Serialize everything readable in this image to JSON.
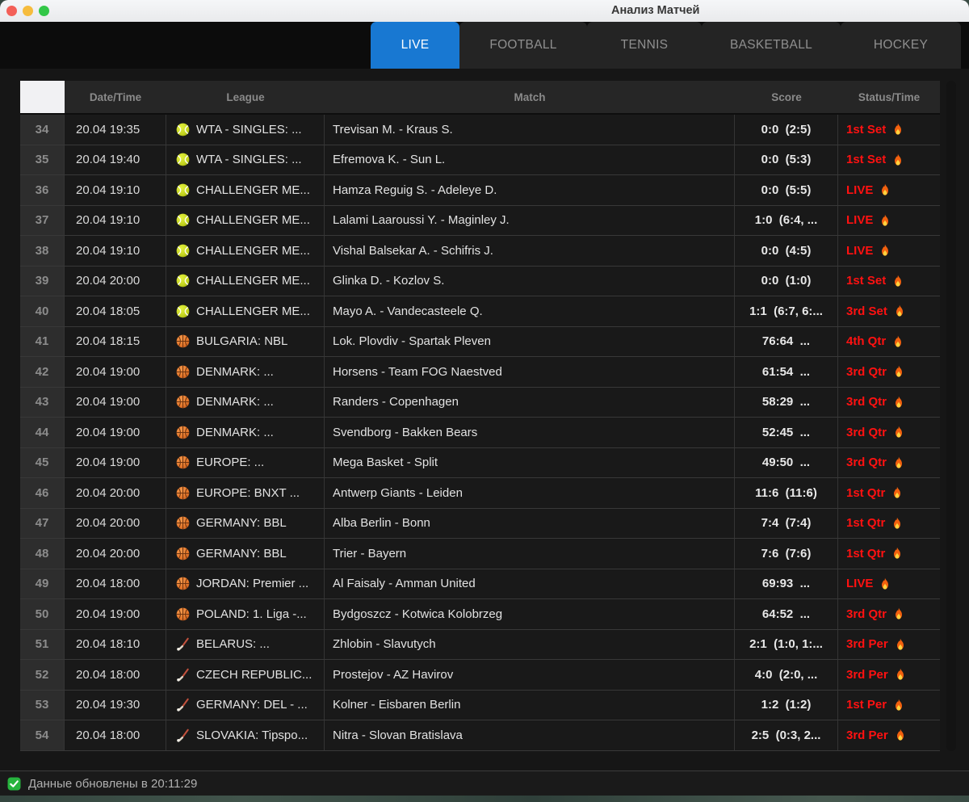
{
  "window": {
    "title": "Анализ Матчей"
  },
  "tabs": [
    {
      "label": "LIVE",
      "active": true
    },
    {
      "label": "FOOTBALL",
      "active": false
    },
    {
      "label": "TENNIS",
      "active": false
    },
    {
      "label": "BASKETBALL",
      "active": false
    },
    {
      "label": "HOCKEY",
      "active": false
    }
  ],
  "colors": {
    "active_tab_blue": "#1878d2",
    "status_red": "#ff1111",
    "check_green": "#27b43e"
  },
  "table": {
    "headers": {
      "date": "Date/Time",
      "league": "League",
      "match": "Match",
      "score": "Score",
      "status": "Status/Time"
    },
    "rows": [
      {
        "num": "34",
        "date": "20.04 19:35",
        "sport": "tennis",
        "league": "WTA - SINGLES: ...",
        "match": "Trevisan M. - Kraus S.",
        "score": "0:0  (2:5)",
        "status": "1st Set"
      },
      {
        "num": "35",
        "date": "20.04 19:40",
        "sport": "tennis",
        "league": "WTA - SINGLES: ...",
        "match": "Efremova K. - Sun L.",
        "score": "0:0  (5:3)",
        "status": "1st Set"
      },
      {
        "num": "36",
        "date": "20.04 19:10",
        "sport": "tennis",
        "league": "CHALLENGER ME...",
        "match": "Hamza Reguig S. - Adeleye D.",
        "score": "0:0  (5:5)",
        "status": "LIVE"
      },
      {
        "num": "37",
        "date": "20.04 19:10",
        "sport": "tennis",
        "league": "CHALLENGER ME...",
        "match": "Lalami Laaroussi Y. - Maginley J.",
        "score": "1:0  (6:4, ...",
        "status": "LIVE"
      },
      {
        "num": "38",
        "date": "20.04 19:10",
        "sport": "tennis",
        "league": "CHALLENGER ME...",
        "match": "Vishal Balsekar A. - Schifris J.",
        "score": "0:0  (4:5)",
        "status": "LIVE"
      },
      {
        "num": "39",
        "date": "20.04 20:00",
        "sport": "tennis",
        "league": "CHALLENGER ME...",
        "match": "Glinka D. - Kozlov S.",
        "score": "0:0  (1:0)",
        "status": "1st Set"
      },
      {
        "num": "40",
        "date": "20.04 18:05",
        "sport": "tennis",
        "league": "CHALLENGER ME...",
        "match": "Mayo A. - Vandecasteele Q.",
        "score": "1:1  (6:7, 6:...",
        "status": "3rd Set"
      },
      {
        "num": "41",
        "date": "20.04 18:15",
        "sport": "basketball",
        "league": "BULGARIA: NBL",
        "match": "Lok. Plovdiv - Spartak Pleven",
        "score": "76:64  ...",
        "status": "4th Qtr"
      },
      {
        "num": "42",
        "date": "20.04 19:00",
        "sport": "basketball",
        "league": "DENMARK: ...",
        "match": "Horsens - Team FOG Naestved",
        "score": "61:54  ...",
        "status": "3rd Qtr"
      },
      {
        "num": "43",
        "date": "20.04 19:00",
        "sport": "basketball",
        "league": "DENMARK: ...",
        "match": "Randers - Copenhagen",
        "score": "58:29  ...",
        "status": "3rd Qtr"
      },
      {
        "num": "44",
        "date": "20.04 19:00",
        "sport": "basketball",
        "league": "DENMARK: ...",
        "match": "Svendborg - Bakken Bears",
        "score": "52:45  ...",
        "status": "3rd Qtr"
      },
      {
        "num": "45",
        "date": "20.04 19:00",
        "sport": "basketball",
        "league": "EUROPE: ...",
        "match": "Mega Basket - Split",
        "score": "49:50  ...",
        "status": "3rd Qtr"
      },
      {
        "num": "46",
        "date": "20.04 20:00",
        "sport": "basketball",
        "league": "EUROPE: BNXT ...",
        "match": "Antwerp Giants - Leiden",
        "score": "11:6  (11:6)",
        "status": "1st Qtr"
      },
      {
        "num": "47",
        "date": "20.04 20:00",
        "sport": "basketball",
        "league": "GERMANY: BBL",
        "match": "Alba Berlin - Bonn",
        "score": "7:4  (7:4)",
        "status": "1st Qtr"
      },
      {
        "num": "48",
        "date": "20.04 20:00",
        "sport": "basketball",
        "league": "GERMANY: BBL",
        "match": "Trier - Bayern",
        "score": "7:6  (7:6)",
        "status": "1st Qtr"
      },
      {
        "num": "49",
        "date": "20.04 18:00",
        "sport": "basketball",
        "league": "JORDAN: Premier ...",
        "match": "Al Faisaly - Amman United",
        "score": "69:93  ...",
        "status": "LIVE"
      },
      {
        "num": "50",
        "date": "20.04 19:00",
        "sport": "basketball",
        "league": "POLAND: 1. Liga -...",
        "match": "Bydgoszcz - Kotwica Kolobrzeg",
        "score": "64:52  ...",
        "status": "3rd Qtr"
      },
      {
        "num": "51",
        "date": "20.04 18:10",
        "sport": "hockey",
        "league": "BELARUS: ...",
        "match": "Zhlobin - Slavutych",
        "score": "2:1  (1:0, 1:...",
        "status": "3rd Per"
      },
      {
        "num": "52",
        "date": "20.04 18:00",
        "sport": "hockey",
        "league": "CZECH REPUBLIC...",
        "match": "Prostejov - AZ Havirov",
        "score": "4:0  (2:0, ...",
        "status": "3rd Per"
      },
      {
        "num": "53",
        "date": "20.04 19:30",
        "sport": "hockey",
        "league": "GERMANY: DEL - ...",
        "match": "Kolner - Eisbaren Berlin",
        "score": "1:2  (1:2)",
        "status": "1st Per"
      },
      {
        "num": "54",
        "date": "20.04 18:00",
        "sport": "hockey",
        "league": "SLOVAKIA: Tipspo...",
        "match": "Nitra - Slovan Bratislava",
        "score": "2:5  (0:3, 2...",
        "status": "3rd Per"
      }
    ]
  },
  "status_bar": {
    "text": "Данные обновлены в 20:11:29"
  }
}
